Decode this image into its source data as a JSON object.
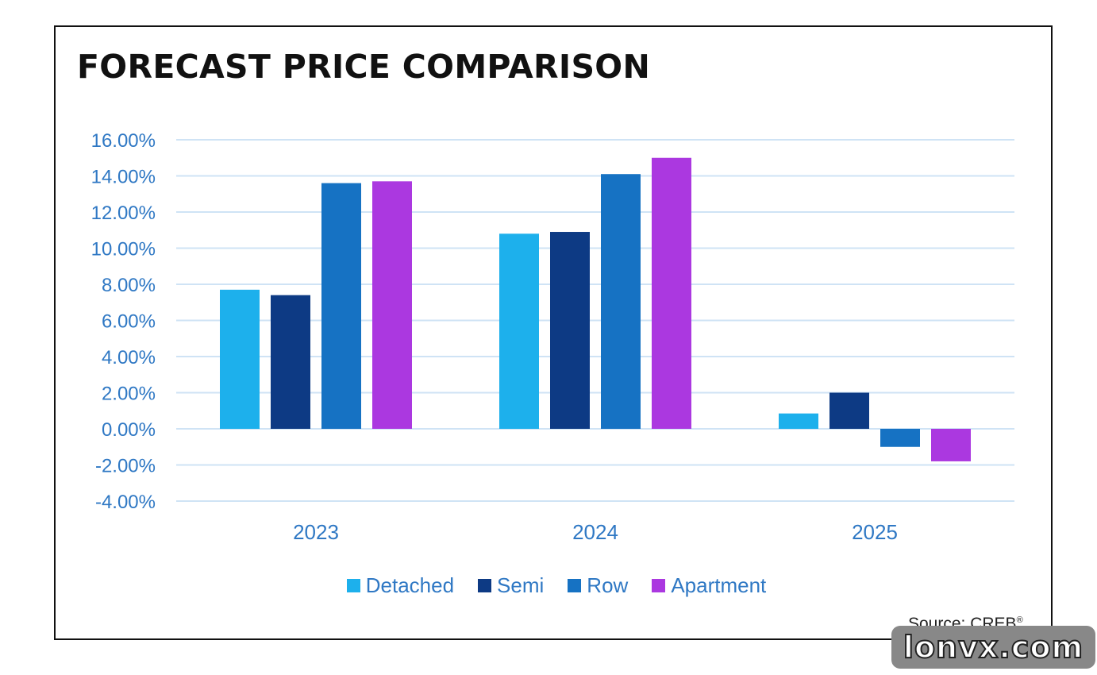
{
  "chart_data": {
    "type": "bar",
    "title": "FORECAST PRICE COMPARISON",
    "categories": [
      "2023",
      "2024",
      "2025"
    ],
    "series": [
      {
        "name": "Detached",
        "color": "#1db0ec",
        "values": [
          7.7,
          10.8,
          0.85
        ]
      },
      {
        "name": "Semi",
        "color": "#0d3a84",
        "values": [
          7.4,
          10.9,
          2.0
        ]
      },
      {
        "name": "Row",
        "color": "#1672c3",
        "values": [
          13.6,
          14.1,
          -1.0
        ]
      },
      {
        "name": "Apartment",
        "color": "#ab38e0",
        "values": [
          13.7,
          15.0,
          -1.8
        ]
      }
    ],
    "xlabel": "",
    "ylabel": "",
    "ylim": [
      -4,
      16
    ],
    "ytick_step": 2,
    "ytick_format": "percent-2dp",
    "grid": true,
    "legend": "bottom-center",
    "axis_text_color": "#2f78c4",
    "gridline_color": "#cfe3f5"
  },
  "source_note": {
    "label": "Source: CREB",
    "mark": "®"
  },
  "watermark": {
    "text": "lonvx.com"
  }
}
